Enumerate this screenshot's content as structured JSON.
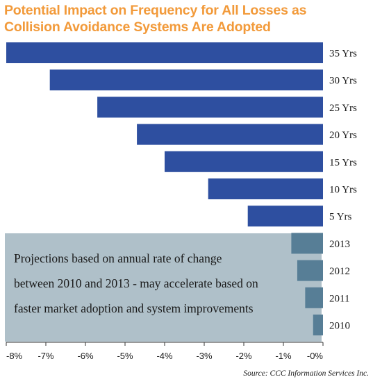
{
  "chart_data": {
    "type": "bar",
    "orientation": "horizontal",
    "title": "Potential Impact on Frequency for All Losses as Collision Avoidance Systems Are Adopted",
    "categories": [
      "35 Yrs",
      "30 Yrs",
      "25 Yrs",
      "20 Yrs",
      "15 Yrs",
      "10 Yrs",
      "5 Yrs",
      "2013",
      "2012",
      "2011",
      "2010"
    ],
    "values": [
      -8.0,
      -6.9,
      -5.7,
      -4.7,
      -4.0,
      -2.9,
      -1.9,
      -0.8,
      -0.65,
      -0.45,
      -0.25
    ],
    "xlim": [
      -8,
      0
    ],
    "x_ticks": [
      "-8%",
      "-7%",
      "-6%",
      "-5%",
      "-4%",
      "-3%",
      "-2%",
      "-1%",
      "-0%"
    ],
    "projection_categories": [
      "35 Yrs",
      "30 Yrs",
      "25 Yrs",
      "20 Yrs",
      "15 Yrs",
      "10 Yrs",
      "5 Yrs"
    ],
    "actual_categories": [
      "2013",
      "2012",
      "2011",
      "2010"
    ],
    "annotation_lines": [
      "Projections based on annual rate of change",
      "between 2010 and 2013 - may accelerate based on",
      "faster market adoption and system improvements"
    ],
    "source": "Source: CCC Information Services Inc.",
    "colors": {
      "title": "#f29a3a",
      "projection_bar": "#2e4fa0",
      "actual_bar": "#577e96",
      "note_box": "#afc0c9"
    },
    "grid": false
  }
}
